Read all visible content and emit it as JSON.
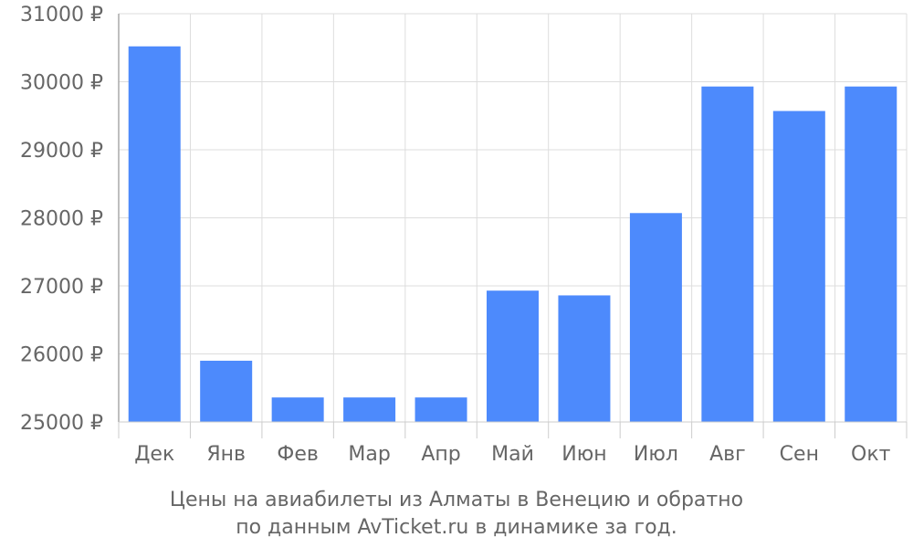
{
  "chart_data": {
    "type": "bar",
    "categories": [
      "Дек",
      "Янв",
      "Фев",
      "Мар",
      "Апр",
      "Май",
      "Июн",
      "Июл",
      "Авг",
      "Сен",
      "Окт"
    ],
    "values": [
      30520,
      25900,
      25360,
      25360,
      25360,
      26930,
      26860,
      28070,
      29930,
      29570,
      29930
    ],
    "ylim": [
      25000,
      31000
    ],
    "yticks": [
      25000,
      26000,
      27000,
      28000,
      29000,
      30000,
      31000
    ],
    "ytick_labels": [
      "25000 ₽",
      "26000 ₽",
      "27000 ₽",
      "28000 ₽",
      "29000 ₽",
      "30000 ₽",
      "31000 ₽"
    ],
    "grid": true,
    "bar_color": "#4d8afc",
    "title": ""
  },
  "caption": {
    "line1": "Цены на авиабилеты из Алматы в Венецию и обратно",
    "line2": "по данным AvTicket.ru в динамике за год."
  }
}
